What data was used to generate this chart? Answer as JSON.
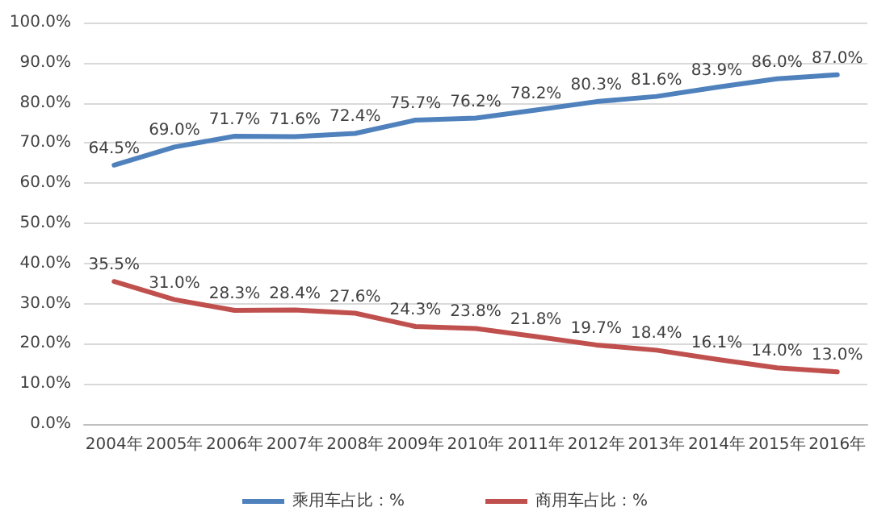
{
  "chart_data": {
    "type": "line",
    "categories": [
      "2004年",
      "2005年",
      "2006年",
      "2007年",
      "2008年",
      "2009年",
      "2010年",
      "2011年",
      "2012年",
      "2013年",
      "2014年",
      "2015年",
      "2016年"
    ],
    "series": [
      {
        "name": "乘用车占比：%",
        "color": "#4f81bd",
        "values": [
          64.5,
          69.0,
          71.7,
          71.6,
          72.4,
          75.7,
          76.2,
          78.2,
          80.3,
          81.6,
          83.9,
          86.0,
          87.0
        ],
        "value_labels": [
          "64.5%",
          "69.0%",
          "71.7%",
          "71.6%",
          "72.4%",
          "75.7%",
          "76.2%",
          "78.2%",
          "80.3%",
          "81.6%",
          "83.9%",
          "86.0%",
          "87.0%"
        ]
      },
      {
        "name": "商用车占比：%",
        "color": "#c0504d",
        "values": [
          35.5,
          31.0,
          28.3,
          28.4,
          27.6,
          24.3,
          23.8,
          21.8,
          19.7,
          18.4,
          16.1,
          14.0,
          13.0
        ],
        "value_labels": [
          "35.5%",
          "31.0%",
          "28.3%",
          "28.4%",
          "27.6%",
          "24.3%",
          "23.8%",
          "21.8%",
          "19.7%",
          "18.4%",
          "16.1%",
          "14.0%",
          "13.0%"
        ]
      }
    ],
    "ylim": [
      0,
      100
    ],
    "yticks": [
      {
        "value": 0,
        "label": "0.0%"
      },
      {
        "value": 10,
        "label": "10.0%"
      },
      {
        "value": 20,
        "label": "20.0%"
      },
      {
        "value": 30,
        "label": "30.0%"
      },
      {
        "value": 40,
        "label": "40.0%"
      },
      {
        "value": 50,
        "label": "50.0%"
      },
      {
        "value": 60,
        "label": "60.0%"
      },
      {
        "value": 70,
        "label": "70.0%"
      },
      {
        "value": 80,
        "label": "80.0%"
      },
      {
        "value": 90,
        "label": "90.0%"
      },
      {
        "value": 100,
        "label": "100.0%"
      }
    ],
    "grid": "y",
    "legend": "bottom",
    "marker": "none",
    "line_style": "solid"
  }
}
